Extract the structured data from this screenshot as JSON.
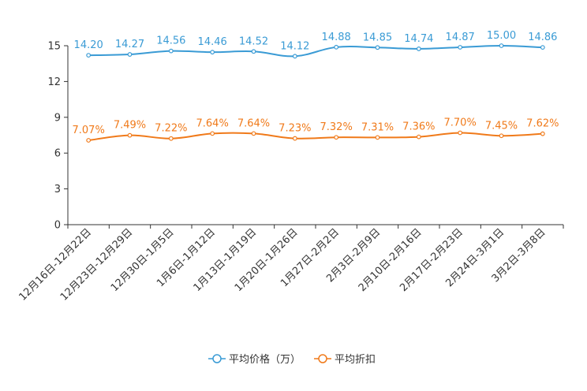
{
  "chart_data": {
    "type": "line",
    "title": "",
    "xlabel": "",
    "ylabel": "",
    "ylim": [
      0,
      15
    ],
    "yticks": [
      0,
      3,
      6,
      9,
      12,
      15
    ],
    "grid": false,
    "legend_position": "bottom-center",
    "categories": [
      "12月16日-12月22日",
      "12月23日-12月29日",
      "12月30日-1月5日",
      "1月6日-1月12日",
      "1月13日-1月19日",
      "1月20日-1月26日",
      "1月27日-2月2日",
      "2月3日-2月9日",
      "2月10日-2月16日",
      "2月17日-2月23日",
      "2月24日-3月1日",
      "3月2日-3月8日"
    ],
    "series": [
      {
        "name": "平均价格（万）",
        "color": "#3a9bd5",
        "values": [
          14.2,
          14.27,
          14.56,
          14.46,
          14.52,
          14.12,
          14.88,
          14.85,
          14.74,
          14.87,
          15.0,
          14.86
        ],
        "labels": [
          "14.20",
          "14.27",
          "14.56",
          "14.46",
          "14.52",
          "14.12",
          "14.88",
          "14.85",
          "14.74",
          "14.87",
          "15.00",
          "14.86"
        ]
      },
      {
        "name": "平均折扣",
        "color": "#f07a1a",
        "values": [
          7.07,
          7.49,
          7.22,
          7.64,
          7.64,
          7.23,
          7.32,
          7.31,
          7.36,
          7.7,
          7.45,
          7.62
        ],
        "labels": [
          "7.07%",
          "7.49%",
          "7.22%",
          "7.64%",
          "7.64%",
          "7.23%",
          "7.32%",
          "7.31%",
          "7.36%",
          "7.70%",
          "7.45%",
          "7.62%"
        ]
      }
    ]
  }
}
